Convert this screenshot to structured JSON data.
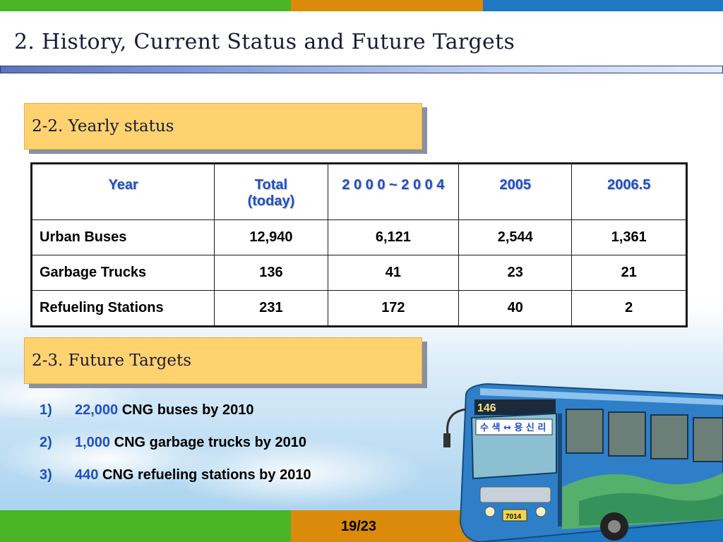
{
  "colors": {
    "green": "#4ab526",
    "orange": "#db8a0b",
    "blue": "#1e78c4",
    "section_fill": "#fed26e",
    "header_text": "#1f4fc7"
  },
  "slide": {
    "title": "2. History, Current Status and Future Targets",
    "page": "19/23"
  },
  "yearly": {
    "heading": "2-2.  Yearly status",
    "header": {
      "col0": "Year",
      "col1_line1": "Total",
      "col1_line2": "(today)",
      "col2": "2 0 0 0 ~ 2 0 0 4",
      "col3": "2005",
      "col4": "2006.5"
    },
    "rows": [
      {
        "label": "Urban Buses",
        "total": "12,940",
        "p2000_2004": "6,121",
        "y2005": "2,544",
        "y2006_5": "1,361"
      },
      {
        "label": "Garbage Trucks",
        "total": "136",
        "p2000_2004": "41",
        "y2005": "23",
        "y2006_5": "21"
      },
      {
        "label": "Refueling Stations",
        "total": "231",
        "p2000_2004": "172",
        "y2005": "40",
        "y2006_5": "2"
      }
    ]
  },
  "future": {
    "heading": "2-3.  Future Targets",
    "items": [
      {
        "num": "1)",
        "value": "22,000",
        "text": "CNG buses by 2010"
      },
      {
        "num": "2)",
        "value": "1,000",
        "text": "CNG garbage trucks by 2010"
      },
      {
        "num": "3)",
        "value": "440",
        "text": "CNG refueling stations by 2010"
      }
    ]
  },
  "bus": {
    "route": "146",
    "sign": "수 색 ↔ 용 신 리",
    "plate": "7014"
  }
}
